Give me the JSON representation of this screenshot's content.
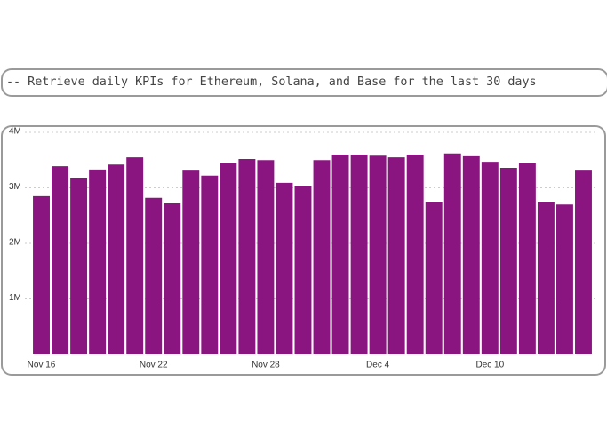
{
  "query": "-- Retrieve daily KPIs for Ethereum, Solana, and Base for the last 30 days",
  "chart_data": {
    "type": "bar",
    "color": "#8b1580",
    "grid": true,
    "categories": [
      "Nov 16",
      null,
      null,
      null,
      null,
      null,
      "Nov 22",
      null,
      null,
      null,
      null,
      null,
      "Nov 28",
      null,
      null,
      null,
      null,
      null,
      "Dec 4",
      null,
      null,
      null,
      null,
      null,
      "Dec 10",
      null,
      null,
      null,
      null,
      null
    ],
    "values": [
      2850000,
      3390000,
      3170000,
      3330000,
      3420000,
      3550000,
      2820000,
      2720000,
      3310000,
      3220000,
      3440000,
      3520000,
      3500000,
      3090000,
      3040000,
      3500000,
      3600000,
      3600000,
      3580000,
      3550000,
      3600000,
      2750000,
      3620000,
      3570000,
      3470000,
      3360000,
      3440000,
      2740000,
      2700000,
      3310000
    ],
    "ylim": [
      0,
      4000000
    ],
    "yticks": [
      {
        "value": 1000000,
        "label": "1M"
      },
      {
        "value": 2000000,
        "label": "2M"
      },
      {
        "value": 3000000,
        "label": "3M"
      },
      {
        "value": 4000000,
        "label": "4M"
      }
    ]
  }
}
